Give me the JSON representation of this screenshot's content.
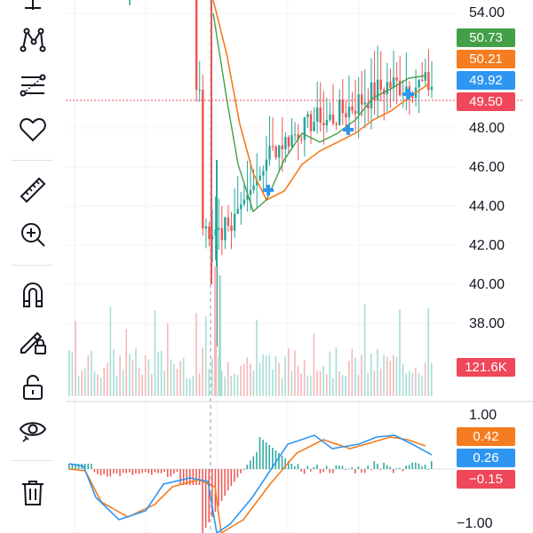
{
  "toolbar": {
    "tools": [
      {
        "name": "crosshair-tool",
        "icon": "crosshair-icon"
      },
      {
        "name": "pattern-tool",
        "icon": "pattern-icon"
      },
      {
        "name": "fib-tool",
        "icon": "fib-retracement-icon"
      },
      {
        "name": "favorite-tool",
        "icon": "heart-icon"
      },
      {
        "name": "ruler-tool",
        "icon": "ruler-icon"
      },
      {
        "name": "zoom-tool",
        "icon": "zoom-in-icon"
      },
      {
        "name": "magnet-tool",
        "icon": "magnet-icon"
      },
      {
        "name": "lock-drawing-tool",
        "icon": "pencil-lock-icon"
      },
      {
        "name": "lock-tool",
        "icon": "unlock-icon"
      },
      {
        "name": "hide-tool",
        "icon": "eye-icon"
      },
      {
        "name": "delete-tool",
        "icon": "trash-icon"
      }
    ]
  },
  "price_axis": {
    "ticks": [
      "54.00",
      "48.00",
      "46.00",
      "44.00",
      "42.00",
      "40.00",
      "38.00"
    ],
    "badges": [
      {
        "label": "50.73",
        "color": "#43a047"
      },
      {
        "label": "50.21",
        "color": "#f57c1f"
      },
      {
        "label": "49.92",
        "color": "#2f95f2"
      },
      {
        "label": "49.50",
        "color": "#f0475a"
      }
    ],
    "volume_badge": {
      "label": "121.6K",
      "color": "#f0475a"
    }
  },
  "macd_axis": {
    "ticks": [
      "1.00",
      "−1.00"
    ],
    "badges": [
      {
        "label": "0.42",
        "color": "#f57c1f"
      },
      {
        "label": "0.26",
        "color": "#2f95f2"
      },
      {
        "label": "−0.15",
        "color": "#f0475a"
      }
    ]
  },
  "colors": {
    "up": "#26a69a",
    "down": "#ef5350",
    "ma_fast": "#43a047",
    "ma_slow": "#f57c1f",
    "macd_line": "#2f95f2",
    "signal_line": "#f57c1f",
    "crosshair": "#f0475a"
  },
  "chart_data": {
    "type": "candlestick",
    "price_range": [
      36.0,
      55.0
    ],
    "crosshair_price": 49.5,
    "macd_range": [
      -1.5,
      1.3
    ],
    "series": [
      {
        "name": "",
        "values": []
      }
    ]
  }
}
